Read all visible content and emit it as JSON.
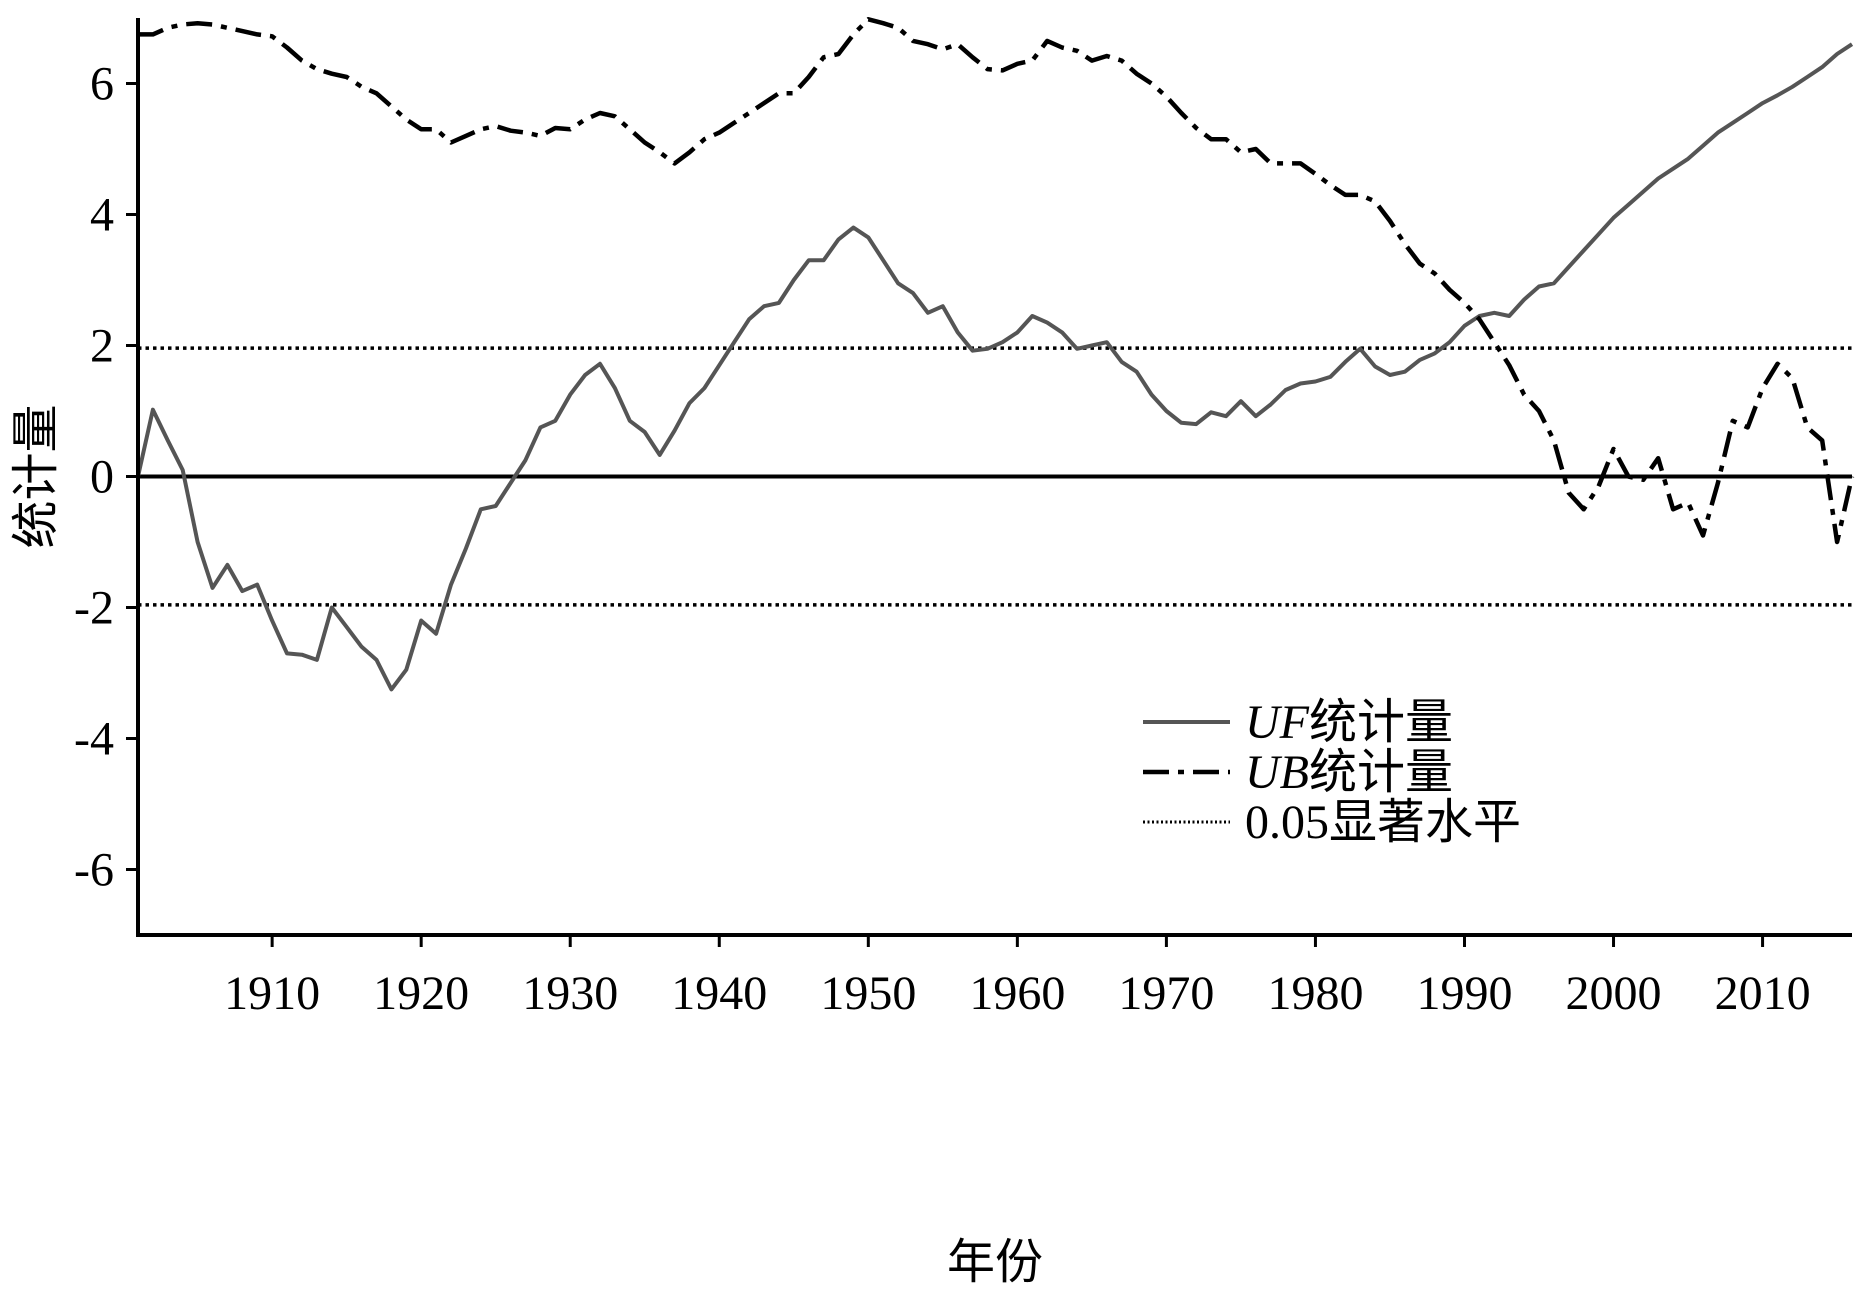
{
  "chart_data": {
    "type": "line",
    "title": "",
    "xlabel": "年份",
    "ylabel": "统计量",
    "xlim": [
      1901,
      2016
    ],
    "ylim": [
      -7,
      7
    ],
    "x_ticks": [
      1910,
      1920,
      1930,
      1940,
      1950,
      1960,
      1970,
      1980,
      1990,
      2000,
      2010
    ],
    "y_ticks": [
      -6,
      -4,
      -2,
      0,
      2,
      4,
      6
    ],
    "grid": false,
    "legend_position": "lower-right",
    "series": [
      {
        "name": "UF统计量",
        "name_italic": "UF",
        "name_rest": "统计量",
        "style": "solid",
        "color": "#555555",
        "x": [
          1901,
          1902,
          1903,
          1904,
          1905,
          1906,
          1907,
          1908,
          1909,
          1910,
          1911,
          1912,
          1913,
          1914,
          1915,
          1916,
          1917,
          1918,
          1919,
          1920,
          1921,
          1922,
          1923,
          1924,
          1925,
          1926,
          1927,
          1928,
          1929,
          1930,
          1931,
          1932,
          1933,
          1934,
          1935,
          1936,
          1937,
          1938,
          1939,
          1940,
          1941,
          1942,
          1943,
          1944,
          1945,
          1946,
          1947,
          1948,
          1949,
          1950,
          1951,
          1952,
          1953,
          1954,
          1955,
          1956,
          1957,
          1958,
          1959,
          1960,
          1961,
          1962,
          1963,
          1964,
          1965,
          1966,
          1967,
          1968,
          1969,
          1970,
          1971,
          1972,
          1973,
          1974,
          1975,
          1976,
          1977,
          1978,
          1979,
          1980,
          1981,
          1982,
          1983,
          1984,
          1985,
          1986,
          1987,
          1988,
          1989,
          1990,
          1991,
          1992,
          1993,
          1994,
          1995,
          1996,
          1997,
          1998,
          1999,
          2000,
          2001,
          2002,
          2003,
          2004,
          2005,
          2006,
          2007,
          2008,
          2009,
          2010,
          2011,
          2012,
          2013,
          2014,
          2015,
          2016
        ],
        "values": [
          0,
          1.02,
          0.55,
          0.1,
          -1.0,
          -1.7,
          -1.35,
          -1.75,
          -1.65,
          -2.2,
          -2.7,
          -2.72,
          -2.8,
          -2.0,
          -2.3,
          -2.6,
          -2.8,
          -3.25,
          -2.95,
          -2.2,
          -2.4,
          -1.65,
          -1.1,
          -0.5,
          -0.45,
          -0.1,
          0.25,
          0.75,
          0.85,
          1.25,
          1.55,
          1.72,
          1.35,
          0.85,
          0.68,
          0.33,
          0.7,
          1.12,
          1.35,
          1.7,
          2.05,
          2.4,
          2.6,
          2.65,
          3.0,
          3.3,
          3.3,
          3.62,
          3.8,
          3.65,
          3.3,
          2.95,
          2.8,
          2.5,
          2.6,
          2.2,
          1.92,
          1.95,
          2.05,
          2.2,
          2.45,
          2.35,
          2.2,
          1.95,
          2.0,
          2.05,
          1.75,
          1.6,
          1.25,
          1.0,
          0.82,
          0.8,
          0.98,
          0.92,
          1.15,
          0.92,
          1.1,
          1.32,
          1.42,
          1.45,
          1.52,
          1.75,
          1.95,
          1.68,
          1.55,
          1.6,
          1.78,
          1.88,
          2.05,
          2.3,
          2.45,
          2.5,
          2.45,
          2.7,
          2.9,
          2.95,
          3.2,
          3.45,
          3.7,
          3.95,
          4.15,
          4.35,
          4.55,
          4.7,
          4.85,
          5.05,
          5.25,
          5.4,
          5.55,
          5.7,
          5.82,
          5.95,
          6.1,
          6.25,
          6.45,
          6.6
        ]
      },
      {
        "name": "UB统计量",
        "name_italic": "UB",
        "name_rest": "统计量",
        "style": "dashed",
        "color": "#000000",
        "x": [
          1901,
          1902,
          1903,
          1904,
          1905,
          1906,
          1907,
          1908,
          1909,
          1910,
          1911,
          1912,
          1913,
          1914,
          1915,
          1916,
          1917,
          1918,
          1919,
          1920,
          1921,
          1922,
          1923,
          1924,
          1925,
          1926,
          1927,
          1928,
          1929,
          1930,
          1931,
          1932,
          1933,
          1934,
          1935,
          1936,
          1937,
          1938,
          1939,
          1940,
          1941,
          1942,
          1943,
          1944,
          1945,
          1946,
          1947,
          1948,
          1949,
          1950,
          1951,
          1952,
          1953,
          1954,
          1955,
          1956,
          1957,
          1958,
          1959,
          1960,
          1961,
          1962,
          1963,
          1964,
          1965,
          1966,
          1967,
          1968,
          1969,
          1970,
          1971,
          1972,
          1973,
          1974,
          1975,
          1976,
          1977,
          1978,
          1979,
          1980,
          1981,
          1982,
          1983,
          1984,
          1985,
          1986,
          1987,
          1988,
          1989,
          1990,
          1991,
          1992,
          1993,
          1994,
          1995,
          1996,
          1997,
          1998,
          1999,
          2000,
          2001,
          2002,
          2003,
          2004,
          2005,
          2006,
          2007,
          2008,
          2009,
          2010,
          2011,
          2012,
          2013,
          2014,
          2015,
          2016
        ],
        "values": [
          6.75,
          6.75,
          6.85,
          6.9,
          6.92,
          6.9,
          6.85,
          6.8,
          6.75,
          6.72,
          6.55,
          6.35,
          6.22,
          6.15,
          6.1,
          5.95,
          5.85,
          5.65,
          5.45,
          5.3,
          5.3,
          5.1,
          5.2,
          5.3,
          5.35,
          5.28,
          5.25,
          5.2,
          5.32,
          5.3,
          5.45,
          5.55,
          5.5,
          5.3,
          5.1,
          4.95,
          4.78,
          4.95,
          5.15,
          5.25,
          5.4,
          5.55,
          5.7,
          5.85,
          5.85,
          6.1,
          6.4,
          6.45,
          6.75,
          6.98,
          6.92,
          6.85,
          6.65,
          6.6,
          6.52,
          6.6,
          6.4,
          6.22,
          6.2,
          6.3,
          6.35,
          6.65,
          6.55,
          6.5,
          6.35,
          6.42,
          6.35,
          6.15,
          6.0,
          5.8,
          5.55,
          5.32,
          5.15,
          5.15,
          4.95,
          5.0,
          4.78,
          4.78,
          4.78,
          4.62,
          4.45,
          4.3,
          4.3,
          4.2,
          3.9,
          3.55,
          3.25,
          3.1,
          2.85,
          2.65,
          2.4,
          2.05,
          1.7,
          1.25,
          1.0,
          0.55,
          -0.25,
          -0.5,
          -0.15,
          0.42,
          0.0,
          -0.05,
          0.28,
          -0.5,
          -0.4,
          -0.9,
          -0.1,
          0.85,
          0.75,
          1.35,
          1.72,
          1.5,
          0.75,
          0.55,
          -1.0,
          0.0
        ]
      }
    ],
    "reference_lines": [
      {
        "name": "0.05显著水平",
        "value": 1.96,
        "style": "dotted"
      },
      {
        "name": "0.05显著水平",
        "value": -1.96,
        "style": "dotted"
      },
      {
        "name": "zero",
        "value": 0,
        "style": "solid"
      }
    ],
    "legend": [
      {
        "italic": "UF",
        "rest": "统计量",
        "style": "solid"
      },
      {
        "italic": "UB",
        "rest": "统计量",
        "style": "dashed"
      },
      {
        "italic": "",
        "rest": "0.05显著水平",
        "style": "dotted"
      }
    ]
  }
}
